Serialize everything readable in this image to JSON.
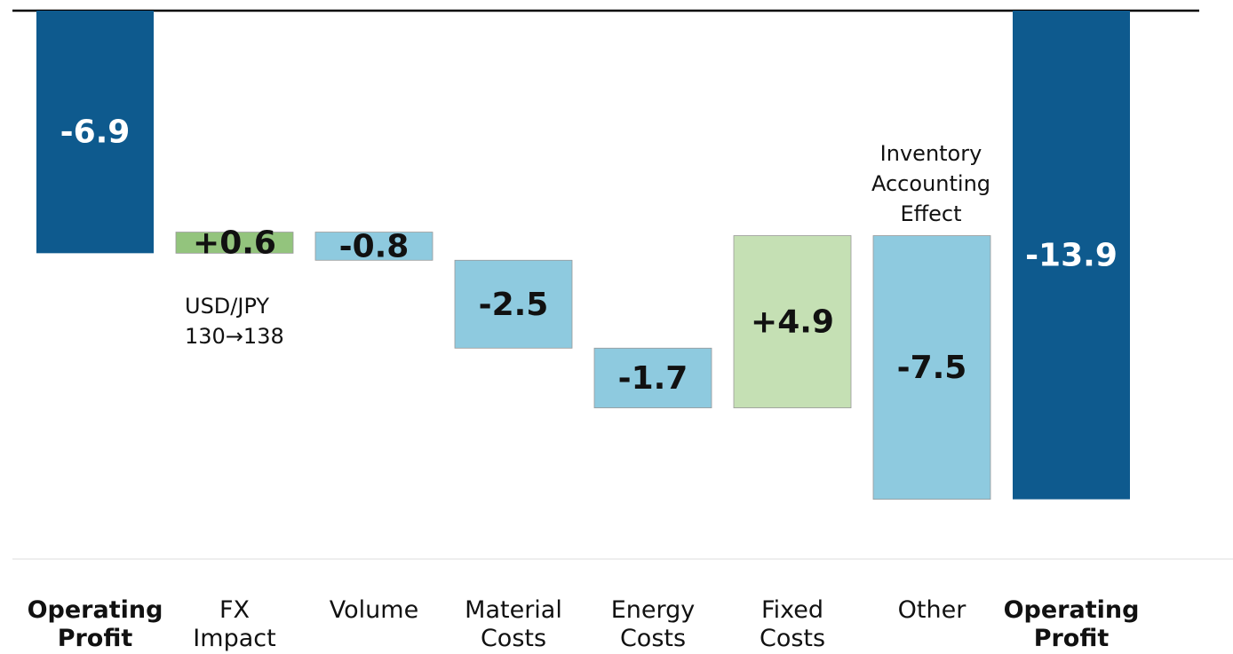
{
  "chart_data": {
    "type": "waterfall",
    "categories": [
      "Operating Profit",
      "FX Impact",
      "Volume",
      "Material Costs",
      "Energy Costs",
      "Fixed Costs",
      "Other",
      "Operating Profit"
    ],
    "values": [
      -6.9,
      0.6,
      -0.8,
      -2.5,
      -1.7,
      4.9,
      -7.5,
      -13.9
    ],
    "value_labels": [
      "-6.9",
      "+0.6",
      "-0.8",
      "-2.5",
      "-1.7",
      "+4.9",
      "-7.5",
      "-13.9"
    ],
    "totals": [
      true,
      false,
      false,
      false,
      false,
      false,
      false,
      true
    ],
    "colors": [
      "#0e5a8e",
      "#93c47d",
      "#8ecadf",
      "#8ecadf",
      "#8ecadf",
      "#c5e0b4",
      "#8ecadf",
      "#0e5a8e"
    ],
    "annotations": [
      "USD/JPY 130→138",
      "Inventory Accounting Effect"
    ],
    "ylim": [
      -15.6,
      0
    ]
  }
}
